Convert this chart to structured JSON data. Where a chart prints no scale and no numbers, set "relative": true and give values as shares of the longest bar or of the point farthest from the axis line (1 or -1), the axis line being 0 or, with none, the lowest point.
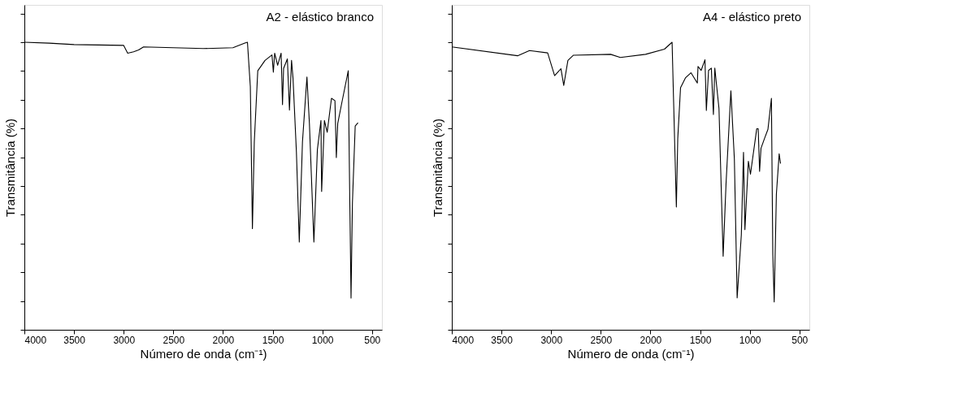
{
  "chart_data": [
    {
      "type": "line",
      "relative": true,
      "xlabel": "Número de onda (cm⁻¹)",
      "ylabel": "Transmitância (%)",
      "annotations": [
        "A2 - elástico branco"
      ],
      "xlim": [
        4000,
        400
      ],
      "xticks": [
        4000,
        3500,
        3000,
        2500,
        2000,
        1500,
        1000,
        500
      ],
      "tick_labels": "x",
      "grid": false,
      "marker": "none",
      "line_style": "solid",
      "series": [
        {
          "color": "#000000",
          "x": [
            4000,
            3750,
            3500,
            3000,
            2960,
            2900,
            2850,
            2800,
            2500,
            2200,
            1900,
            1780,
            1754,
            1725,
            1704,
            1685,
            1650,
            1577,
            1507,
            1493,
            1480,
            1450,
            1415,
            1401,
            1390,
            1352,
            1331,
            1310,
            1295,
            1261,
            1232,
            1200,
            1155,
            1130,
            1085,
            1050,
            1014,
            1007,
            979,
            951,
            908,
            873,
            859,
            845,
            803,
            739,
            725,
            711,
            697,
            669,
            641
          ],
          "values": [
            1.0,
            0.997,
            0.992,
            0.989,
            0.962,
            0.967,
            0.973,
            0.984,
            0.981,
            0.978,
            0.981,
            0.997,
            1.0,
            0.846,
            0.352,
            0.654,
            0.901,
            0.937,
            0.956,
            0.896,
            0.962,
            0.92,
            0.962,
            0.783,
            0.909,
            0.942,
            0.764,
            0.937,
            0.874,
            0.618,
            0.305,
            0.654,
            0.879,
            0.717,
            0.305,
            0.626,
            0.728,
            0.481,
            0.728,
            0.687,
            0.805,
            0.797,
            0.599,
            0.717,
            0.791,
            0.901,
            0.489,
            0.11,
            0.442,
            0.709,
            0.72
          ]
        }
      ]
    },
    {
      "type": "line",
      "relative": true,
      "xlabel": "Número de onda (cm⁻¹)",
      "ylabel": "Transmitância (%)",
      "annotations": [
        "A4 - elástico preto"
      ],
      "xlim": [
        4000,
        400
      ],
      "xticks": [
        4000,
        3500,
        3000,
        2500,
        2000,
        1500,
        1000,
        500
      ],
      "tick_labels": "x",
      "grid": false,
      "marker": "none",
      "line_style": "solid",
      "series": [
        {
          "color": "#000000",
          "x": [
            4000,
            3338,
            3218,
            3035,
            2965,
            2901,
            2873,
            2831,
            2775,
            2401,
            2303,
            2049,
            1859,
            1782,
            1768,
            1739,
            1725,
            1697,
            1648,
            1592,
            1528,
            1521,
            1490,
            1451,
            1437,
            1415,
            1387,
            1366,
            1352,
            1310,
            1268,
            1239,
            1190,
            1155,
            1127,
            1085,
            1063,
            1049,
            1014,
            993,
            930,
            915,
            901,
            887,
            852,
            817,
            782,
            768,
            754,
            732,
            704,
            690
          ],
          "values": [
            0.984,
            0.953,
            0.971,
            0.963,
            0.884,
            0.908,
            0.85,
            0.937,
            0.955,
            0.958,
            0.947,
            0.958,
            0.976,
            1.0,
            0.81,
            0.427,
            0.665,
            0.842,
            0.876,
            0.894,
            0.858,
            0.916,
            0.902,
            0.939,
            0.763,
            0.902,
            0.91,
            0.749,
            0.91,
            0.77,
            0.256,
            0.507,
            0.831,
            0.594,
            0.111,
            0.33,
            0.617,
            0.348,
            0.586,
            0.541,
            0.699,
            0.699,
            0.551,
            0.631,
            0.665,
            0.697,
            0.805,
            0.261,
            0.097,
            0.472,
            0.612,
            0.578
          ]
        }
      ]
    }
  ]
}
